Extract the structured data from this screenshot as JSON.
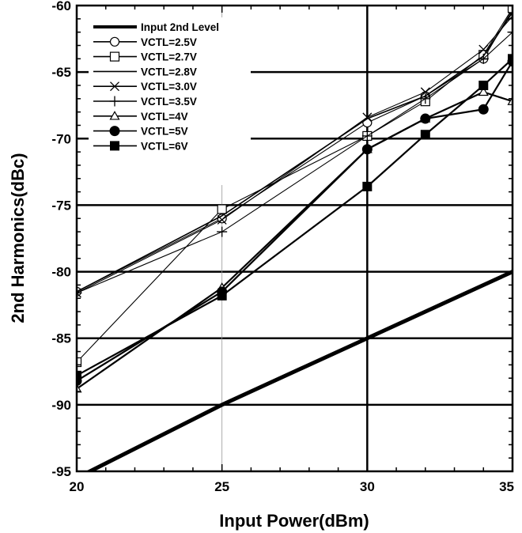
{
  "chart_data": {
    "type": "line",
    "xlabel": "Input Power(dBm)",
    "ylabel": "2nd Harmonics(dBc)",
    "xlim": [
      20,
      35
    ],
    "ylim": [
      -95,
      -60
    ],
    "xticks": [
      "20",
      "25",
      "30",
      "35"
    ],
    "yticks": [
      "-95",
      "-90",
      "-85",
      "-80",
      "-75",
      "-70",
      "-65",
      "-60"
    ],
    "legend_position": "top-left",
    "grid": true,
    "series": [
      {
        "name": "Input 2nd Level",
        "marker": "none",
        "line": "thick",
        "x": [
          20,
          25,
          30,
          35
        ],
        "y": [
          -95.5,
          -90,
          -85,
          -80
        ]
      },
      {
        "name": "VCTL=2.5V",
        "marker": "circle",
        "x": [
          20,
          25,
          30,
          32,
          34,
          35
        ],
        "y": [
          -81.5,
          -76,
          -68.8,
          -66.8,
          -64,
          -60.3
        ]
      },
      {
        "name": "VCTL=2.7V",
        "marker": "square-open",
        "x": [
          20,
          25,
          30,
          32,
          34,
          35
        ],
        "y": [
          -86.8,
          -75.3,
          -69.8,
          -67.2,
          -63.7,
          -60.2
        ]
      },
      {
        "name": "VCTL=2.8V",
        "marker": "none",
        "line": "thin",
        "x": [
          20,
          25,
          30,
          32,
          34,
          35
        ],
        "y": [
          -81.5,
          -75.8,
          -68.5,
          -66.8,
          -63.8,
          -60.5
        ]
      },
      {
        "name": "VCTL=3.0V",
        "marker": "x",
        "x": [
          20,
          25,
          30,
          32,
          34,
          35
        ],
        "y": [
          -81.6,
          -76.1,
          -68.4,
          -66.5,
          -63.3,
          -60.8
        ]
      },
      {
        "name": "VCTL=3.5V",
        "marker": "plus",
        "x": [
          20,
          25,
          30,
          32,
          34,
          35
        ],
        "y": [
          -81.6,
          -77,
          -69.8,
          -67,
          -64,
          -62
        ]
      },
      {
        "name": "VCTL=4V",
        "marker": "triangle",
        "x": [
          20,
          25,
          30,
          32,
          34,
          35
        ],
        "y": [
          -88.8,
          -81.2,
          -70.8,
          -68.5,
          -66.5,
          -67.2
        ]
      },
      {
        "name": "VCTL=5V",
        "marker": "circle-filled",
        "x": [
          20,
          25,
          30,
          32,
          34,
          35
        ],
        "y": [
          -88.2,
          -81.5,
          -70.8,
          -68.5,
          -67.8,
          -64.2
        ]
      },
      {
        "name": "VCTL=6V",
        "marker": "square-filled",
        "x": [
          20,
          25,
          30,
          32,
          34,
          35
        ],
        "y": [
          -87.8,
          -81.8,
          -73.6,
          -69.7,
          -66,
          -64
        ]
      }
    ]
  }
}
